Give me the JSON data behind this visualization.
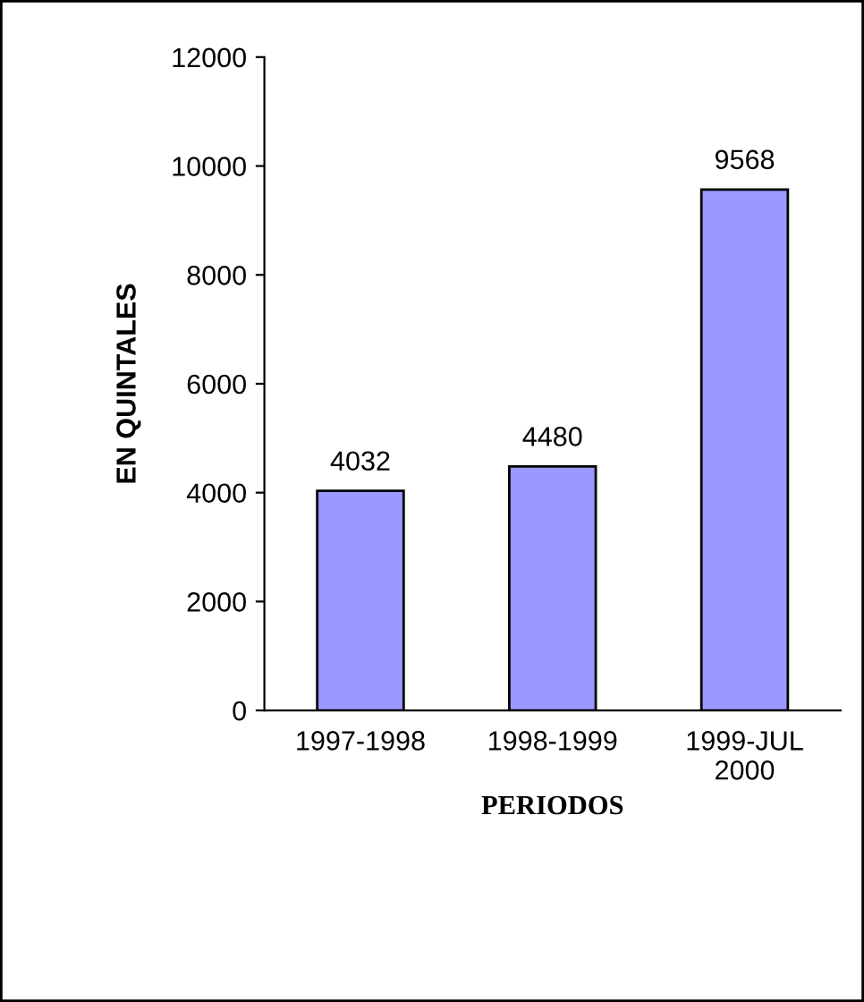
{
  "chart_data": {
    "type": "bar",
    "xlabel": "PERIODOS",
    "ylabel": "EN QUINTALES",
    "categories": [
      "1997-1998",
      "1998-1999",
      "1999-JUL\n2000"
    ],
    "values": [
      4032,
      4480,
      9568
    ],
    "color": "#9999ff",
    "ylim": [
      0,
      12000
    ],
    "yticks": [
      0,
      2000,
      4000,
      6000,
      8000,
      10000,
      12000
    ],
    "grid": false,
    "legend": false,
    "data_labels": true
  }
}
